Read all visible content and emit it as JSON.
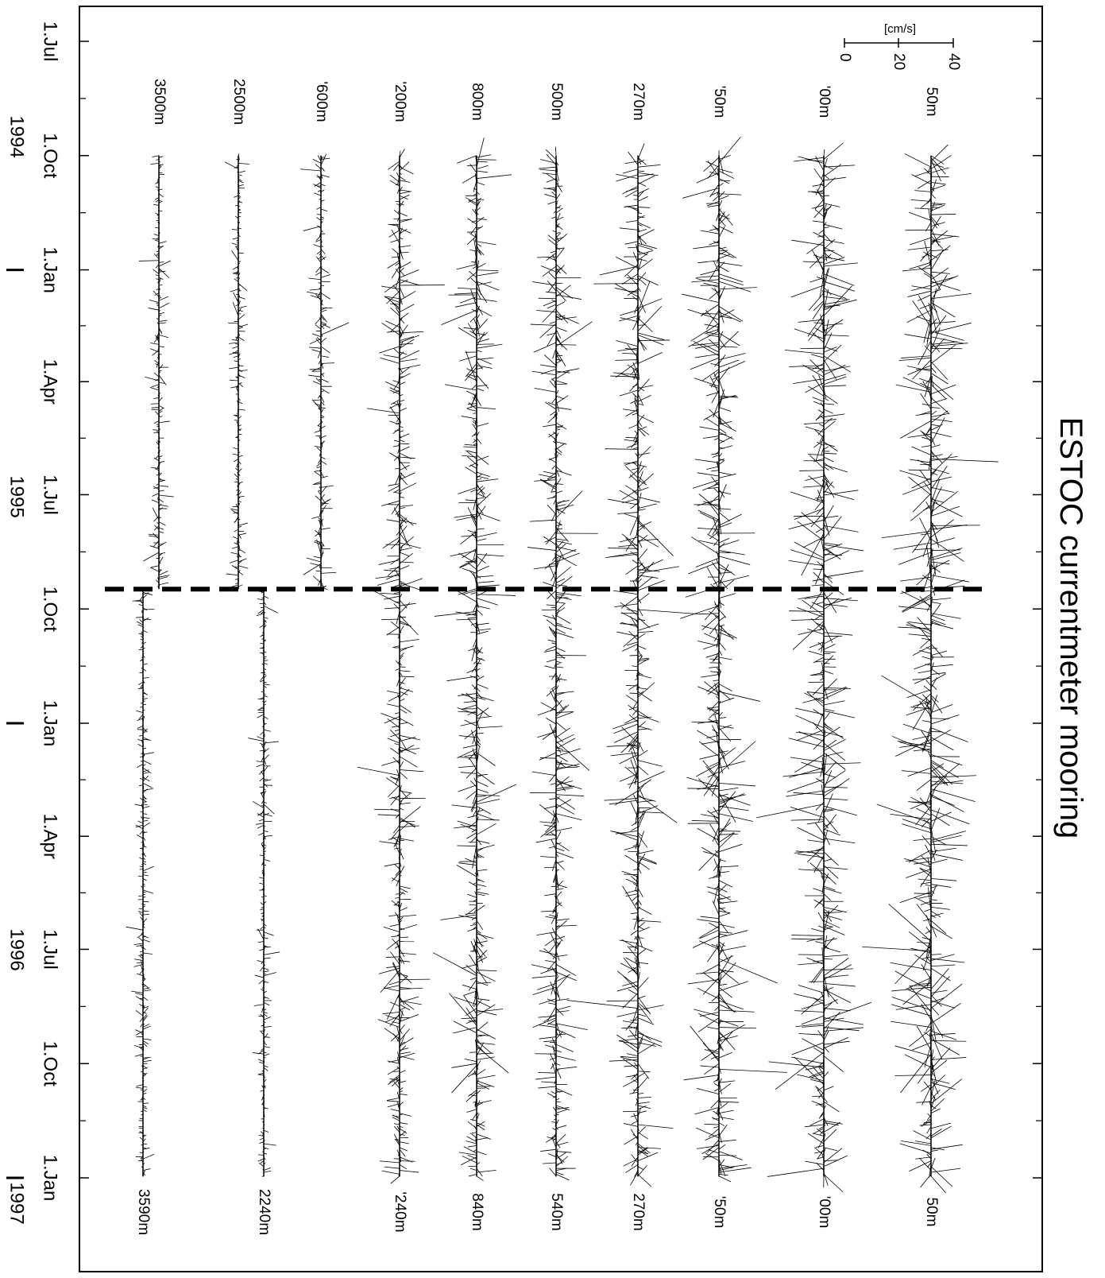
{
  "title": "ESTOC  currentmeter mooring",
  "scale_bar": {
    "unit_label": "[cm/s]",
    "ticks": [
      "0",
      "20",
      "40"
    ]
  },
  "chart_data": {
    "type": "stick-plot",
    "title": "ESTOC  currentmeter mooring",
    "time_axis": {
      "start": "1994-07-01",
      "end": "1997-01-01",
      "tick_labels": [
        {
          "date": "1994-07-01",
          "label": "1.Jul"
        },
        {
          "date": "1994-10-01",
          "label": "1.Oct"
        },
        {
          "date": "1995-01-01",
          "label": "1.Jan"
        },
        {
          "date": "1995-04-01",
          "label": "1.Apr"
        },
        {
          "date": "1995-07-01",
          "label": "1.Jul"
        },
        {
          "date": "1995-10-01",
          "label": "1.Oct"
        },
        {
          "date": "1996-01-01",
          "label": "1.Jan"
        },
        {
          "date": "1996-04-01",
          "label": "1.Apr"
        },
        {
          "date": "1996-07-01",
          "label": "1.Jul"
        },
        {
          "date": "1996-10-01",
          "label": "1.Oct"
        },
        {
          "date": "1997-01-01",
          "label": "1.Jan"
        }
      ],
      "years": [
        {
          "label": "1994",
          "date": "1994-10-01"
        },
        {
          "label": "1995",
          "date": "1995-07-01"
        },
        {
          "label": "1996",
          "date": "1996-07-01"
        },
        {
          "label": "1997",
          "date": "1997-01-01"
        }
      ]
    },
    "deployment_break": "1995-09-15",
    "scale": {
      "unit": "cm/s",
      "max": 40
    },
    "series": [
      {
        "label_first": "50m",
        "label_second": "50m",
        "start": "1994-10-01",
        "end": "1996-12-31",
        "amp": 38
      },
      {
        "label_first": "'00m",
        "label_second": "'00m",
        "start": "1994-10-01",
        "end": "1996-12-31",
        "amp": 32
      },
      {
        "label_first": "'50m",
        "label_second": "'50m",
        "start": "1994-10-01",
        "end": "1996-12-31",
        "amp": 30
      },
      {
        "label_first": "270m",
        "label_second": "270m",
        "start": "1994-10-01",
        "end": "1996-12-31",
        "amp": 26
      },
      {
        "label_first": "500m",
        "label_second": "540m",
        "start": "1994-10-01",
        "end": "1996-12-31",
        "amp": 22
      },
      {
        "label_first": "800m",
        "label_second": "840m",
        "start": "1994-10-01",
        "end": "1996-12-31",
        "amp": 22
      },
      {
        "label_first": "'200m",
        "label_second": "'240m",
        "start": "1994-10-01",
        "end": "1996-12-31",
        "amp": 20
      },
      {
        "label_first": "'600m",
        "label_second": "",
        "start": "1994-10-01",
        "end": "1995-09-15",
        "amp": 12
      },
      {
        "label_first": "2500m",
        "label_second": "2240m",
        "start": "1994-10-01",
        "end": "1996-12-31",
        "amp": 8
      },
      {
        "label_first": "3500m",
        "label_second": "3590m",
        "start": "1994-10-01",
        "end": "1996-12-31",
        "amp": 9
      }
    ]
  }
}
